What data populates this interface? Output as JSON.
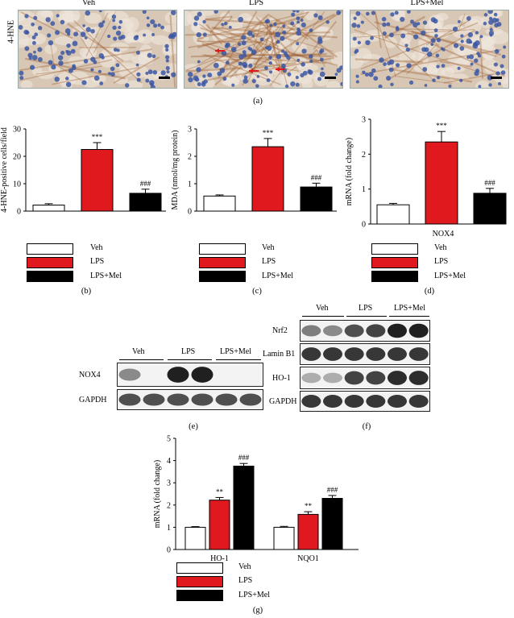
{
  "colors": {
    "veh": "#ffffff",
    "lps": "#e0191e",
    "mel": "#000000",
    "tissue_bg": "#d9c7b5",
    "nuclei": "#3b57a3",
    "stain": "#9a5a2a",
    "arrow": "#e0191e"
  },
  "panel_a": {
    "row_label": "4-HNE",
    "titles": [
      "Veh",
      "LPS",
      "LPS+Mel"
    ],
    "letter": "(a)"
  },
  "legend": {
    "items": [
      "Veh",
      "LPS",
      "LPS+Mel"
    ]
  },
  "panel_letters": {
    "b": "(b)",
    "c": "(c)",
    "d": "(d)",
    "e": "(e)",
    "f": "(f)",
    "g": "(g)"
  },
  "chart_data": [
    {
      "id": "b",
      "type": "bar",
      "categories": [
        "Veh",
        "LPS",
        "LPS+Mel"
      ],
      "values": [
        2.2,
        22.5,
        6.5
      ],
      "errors": [
        0.5,
        2.5,
        1.5
      ],
      "annotations": [
        "",
        "***",
        "###"
      ],
      "ylabel": "4-HNE-positive cells/field",
      "ylim": [
        0,
        30
      ],
      "yticks": [
        "0",
        "10",
        "20",
        "30"
      ]
    },
    {
      "id": "c",
      "type": "bar",
      "categories": [
        "Veh",
        "LPS",
        "LPS+Mel"
      ],
      "values": [
        0.55,
        2.35,
        0.88
      ],
      "errors": [
        0.04,
        0.3,
        0.14
      ],
      "annotations": [
        "",
        "***",
        "###"
      ],
      "ylabel": "MDA (nmol/mg protein)",
      "ylim": [
        0,
        3
      ],
      "yticks": [
        "0",
        "1",
        "2",
        "3"
      ]
    },
    {
      "id": "d",
      "type": "bar",
      "categories": [
        "Veh",
        "LPS",
        "LPS+Mel"
      ],
      "values": [
        0.55,
        2.35,
        0.88
      ],
      "errors": [
        0.04,
        0.3,
        0.14
      ],
      "annotations": [
        "",
        "***",
        "###"
      ],
      "ylabel": "mRNA (fold change)",
      "xlabel": "NOX4",
      "ylim": [
        0,
        3
      ],
      "yticks": [
        "0",
        "1",
        "2",
        "3"
      ]
    },
    {
      "id": "g",
      "type": "bar",
      "categories": [
        "HO-1",
        "NQO1"
      ],
      "series": [
        {
          "name": "Veh",
          "values": [
            1.0,
            1.0
          ],
          "errors": [
            0.03,
            0.04
          ]
        },
        {
          "name": "LPS",
          "values": [
            2.22,
            1.58
          ],
          "errors": [
            0.12,
            0.12
          ]
        },
        {
          "name": "LPS+Mel",
          "values": [
            3.75,
            2.3
          ],
          "errors": [
            0.12,
            0.13
          ]
        }
      ],
      "annotations": [
        [
          "",
          "**",
          "###"
        ],
        [
          "",
          "**",
          "###"
        ]
      ],
      "ylabel": "mRNA (fold change)",
      "ylim": [
        0,
        5
      ],
      "yticks": [
        "0",
        "1",
        "2",
        "3",
        "4",
        "5"
      ]
    }
  ],
  "panel_e": {
    "groups": [
      "Veh",
      "LPS",
      "LPS+Mel"
    ],
    "rows": [
      {
        "label": "NOX4",
        "intensity": [
          0.5,
          0.05,
          0.95,
          0.95,
          0.02,
          0.02
        ]
      },
      {
        "label": "GAPDH",
        "intensity": [
          0.75,
          0.75,
          0.75,
          0.75,
          0.75,
          0.75
        ]
      }
    ]
  },
  "panel_f": {
    "groups": [
      "Veh",
      "LPS",
      "LPS+Mel"
    ],
    "rows": [
      {
        "label": "Nrf2",
        "intensity": [
          0.55,
          0.5,
          0.75,
          0.8,
          0.95,
          0.95
        ]
      },
      {
        "label": "Lamin B1",
        "intensity": [
          0.85,
          0.85,
          0.85,
          0.85,
          0.85,
          0.85
        ]
      },
      {
        "label": "HO-1",
        "intensity": [
          0.35,
          0.35,
          0.8,
          0.8,
          0.9,
          0.9
        ]
      },
      {
        "label": "GAPDH",
        "intensity": [
          0.85,
          0.85,
          0.85,
          0.85,
          0.85,
          0.85
        ]
      }
    ]
  }
}
